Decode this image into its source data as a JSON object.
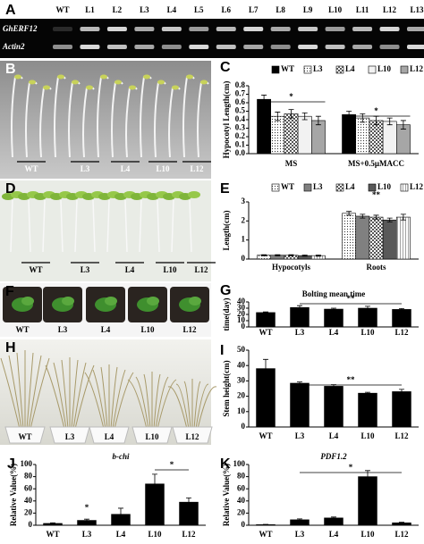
{
  "gel": {
    "panel": "A",
    "lanes": [
      "WT",
      "L1",
      "L2",
      "L3",
      "L4",
      "L5",
      "L6",
      "L7",
      "L8",
      "L9",
      "L10",
      "L11",
      "L12",
      "L13"
    ],
    "rows": [
      "GhERF12",
      "Actin2"
    ]
  },
  "photos": [
    {
      "panel": "B",
      "labels": [
        "WT",
        "L3",
        "L4",
        "L10",
        "L12"
      ]
    },
    {
      "panel": "D",
      "labels": [
        "WT",
        "L3",
        "L4",
        "L10",
        "L12"
      ]
    },
    {
      "panel": "F",
      "labels": [
        "WT",
        "L3",
        "L4",
        "L10",
        "L12"
      ]
    },
    {
      "panel": "H",
      "labels": [
        "WT",
        "L3",
        "L4",
        "L10",
        "L12"
      ]
    }
  ],
  "chart_data": [
    {
      "type": "bar",
      "panel": "C",
      "ylabel": "Hypocotyl Length(cm)",
      "categories": [
        "MS",
        "MS+0.5μMACC"
      ],
      "series": [
        {
          "name": "WT",
          "color": "#000000",
          "pattern": "solid",
          "values": [
            0.64,
            0.46
          ],
          "errors": [
            0.05,
            0.04
          ]
        },
        {
          "name": "L3",
          "color": "#ffffff",
          "pattern": "dots",
          "values": [
            0.44,
            0.42
          ],
          "errors": [
            0.05,
            0.05
          ]
        },
        {
          "name": "L4",
          "color": "#ffffff",
          "pattern": "checker",
          "values": [
            0.47,
            0.39
          ],
          "errors": [
            0.05,
            0.05
          ]
        },
        {
          "name": "L10",
          "color": "#f2f2f2",
          "pattern": "solid",
          "values": [
            0.44,
            0.38
          ],
          "errors": [
            0.04,
            0.04
          ]
        },
        {
          "name": "L12",
          "color": "#a6a6a6",
          "pattern": "solid",
          "values": [
            0.39,
            0.34
          ],
          "errors": [
            0.05,
            0.05
          ]
        }
      ],
      "ylim": [
        0,
        0.8
      ],
      "yticks": [
        {
          "value": 0,
          "label": "0.0"
        },
        0.1,
        0.2,
        0.3,
        0.4,
        0.5,
        0.6,
        0.7,
        0.8
      ],
      "legend": "top",
      "annotations": [
        "*",
        "*"
      ]
    },
    {
      "type": "bar",
      "panel": "E",
      "ylabel": "Length(cm)",
      "categories": [
        "Hypocotyls",
        "Roots"
      ],
      "series": [
        {
          "name": "WT",
          "color": "#ffffff",
          "pattern": "dots",
          "values": [
            0.2,
            2.4
          ],
          "errors": [
            0.03,
            0.1
          ]
        },
        {
          "name": "L3",
          "color": "#808080",
          "pattern": "solid",
          "values": [
            0.2,
            2.25
          ],
          "errors": [
            0.03,
            0.1
          ]
        },
        {
          "name": "L4",
          "color": "#ffffff",
          "pattern": "checker",
          "values": [
            0.2,
            2.2
          ],
          "errors": [
            0.03,
            0.1
          ]
        },
        {
          "name": "L10",
          "color": "#595959",
          "pattern": "solid",
          "values": [
            0.18,
            2.05
          ],
          "errors": [
            0.03,
            0.1
          ]
        },
        {
          "name": "L12",
          "color": "#ffffff",
          "pattern": "lines",
          "values": [
            0.18,
            2.2
          ],
          "errors": [
            0.03,
            0.15
          ]
        }
      ],
      "ylim": [
        0,
        3
      ],
      "yticks": [
        0,
        1,
        2,
        3
      ],
      "legend": "top",
      "annotations": [
        "**"
      ]
    },
    {
      "type": "bar",
      "panel": "G",
      "title": "Bolting mean time",
      "title_style": "bold",
      "ylabel": "time(day)",
      "categories": [
        "WT",
        "L3",
        "L4",
        "L10",
        "L12"
      ],
      "values": [
        23,
        31,
        28.5,
        30,
        28
      ],
      "errors": [
        1,
        3,
        1.5,
        3,
        1.5
      ],
      "color": "#000000",
      "ylim": [
        0,
        40
      ],
      "yticks": [
        0,
        10,
        20,
        30,
        40
      ],
      "annotations": [
        "**"
      ]
    },
    {
      "type": "bar",
      "panel": "I",
      "ylabel": "Stem height(cm)",
      "categories": [
        "WT",
        "L3",
        "L4",
        "L10",
        "L12"
      ],
      "values": [
        38,
        28.5,
        26.5,
        22,
        23
      ],
      "errors": [
        6,
        0.8,
        1,
        0.6,
        1.5
      ],
      "color": "#000000",
      "ylim": [
        0,
        50
      ],
      "yticks": [
        0,
        10,
        20,
        30,
        40,
        50
      ],
      "annotations": [
        "**"
      ]
    },
    {
      "type": "bar",
      "panel": "J",
      "title": "b-chi",
      "title_style": "italic",
      "ylabel": "Relative Value(%)",
      "categories": [
        "WT",
        "L3",
        "L4",
        "L10",
        "L12"
      ],
      "values": [
        3,
        8,
        18,
        68,
        38
      ],
      "errors": [
        1,
        2,
        10,
        16,
        7
      ],
      "color": "#000000",
      "ylim": [
        0,
        100
      ],
      "yticks": [
        0,
        20,
        40,
        60,
        80,
        100
      ],
      "annotations": [
        "*",
        "*"
      ]
    },
    {
      "type": "bar",
      "panel": "K",
      "title": "PDF1.2",
      "title_style": "italic",
      "ylabel": "Relative Value(%)",
      "categories": [
        "WT",
        "L3",
        "L4",
        "L10",
        "L12"
      ],
      "values": [
        1,
        9,
        12,
        80,
        4
      ],
      "errors": [
        0.5,
        1.5,
        1.5,
        10,
        1
      ],
      "color": "#000000",
      "ylim": [
        0,
        100
      ],
      "yticks": [
        0,
        20,
        40,
        60,
        80,
        100
      ],
      "annotations": [
        "*"
      ]
    }
  ]
}
